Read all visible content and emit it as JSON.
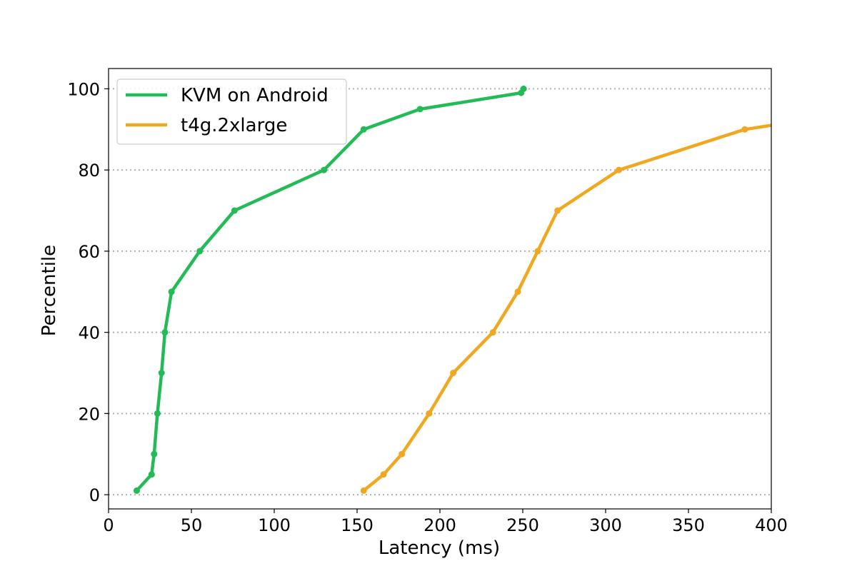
{
  "chart_data": {
    "type": "line",
    "xlabel": "Latency (ms)",
    "ylabel": "Percentile",
    "xlim": [
      0,
      400
    ],
    "ylim": [
      -3.5,
      105
    ],
    "xticks": [
      0,
      50,
      100,
      150,
      200,
      250,
      300,
      350,
      400
    ],
    "yticks": [
      0,
      20,
      40,
      60,
      80,
      100
    ],
    "grid": "horizontal dotted",
    "legend": "upper-left",
    "series": [
      {
        "name": "KVM on Android",
        "color": "#22bb55",
        "points": [
          [
            17,
            1
          ],
          [
            26,
            5
          ],
          [
            27.5,
            10
          ],
          [
            29.5,
            20
          ],
          [
            32,
            30
          ],
          [
            34,
            40
          ],
          [
            38,
            50
          ],
          [
            55,
            60
          ],
          [
            76,
            70
          ],
          [
            130,
            80
          ],
          [
            154,
            90
          ],
          [
            188,
            95
          ],
          [
            249,
            99
          ],
          [
            250.5,
            100
          ]
        ]
      },
      {
        "name": "t4g.2xlarge",
        "color": "#f0a820",
        "points": [
          [
            154,
            1
          ],
          [
            166,
            5
          ],
          [
            177,
            10
          ],
          [
            193.5,
            20
          ],
          [
            208,
            30
          ],
          [
            232,
            40
          ],
          [
            247,
            50
          ],
          [
            259,
            60
          ],
          [
            271,
            70
          ],
          [
            308,
            80
          ],
          [
            384,
            90
          ],
          [
            400,
            91
          ]
        ]
      }
    ]
  }
}
